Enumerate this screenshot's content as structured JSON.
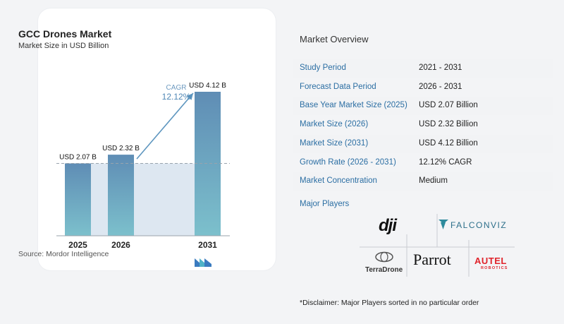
{
  "chart_data": {
    "type": "bar",
    "title": "GCC Drones Market",
    "subtitle": "Market Size in USD Billion",
    "categories": [
      "2025",
      "2026",
      "2031"
    ],
    "values": [
      2.07,
      2.32,
      4.12
    ],
    "data_labels": [
      "USD 2.07 B",
      "USD 2.32 B",
      "USD 4.12 B"
    ],
    "ylim": [
      0,
      4.12
    ],
    "annotation": {
      "label": "CAGR",
      "value": "12.12%"
    },
    "colors": {
      "bar_top": "#5f8db5",
      "bar_bottom": "#7cc0cc",
      "shade": "#dde7f1",
      "arrow": "#5e96bf",
      "dashed": "#98a3ad"
    }
  },
  "source": "Source:  Mordor Intelligence",
  "overview": {
    "title": "Market Overview",
    "rows": [
      {
        "label": "Study Period",
        "value": "2021 - 2031"
      },
      {
        "label": "Forecast Data Period",
        "value": "2026 - 2031"
      },
      {
        "label": "Base Year Market Size (2025)",
        "value": "USD 2.07 Billion"
      },
      {
        "label": "Market Size (2026)",
        "value": "USD 2.32 Billion"
      },
      {
        "label": "Market Size (2031)",
        "value": "USD 4.12 Billion"
      },
      {
        "label": "Growth Rate (2026 - 2031)",
        "value": "12.12% CAGR"
      },
      {
        "label": "Market Concentration",
        "value": "Medium"
      }
    ]
  },
  "major_players": {
    "title": "Major Players",
    "logos": [
      "dji",
      "FALCONVIZ",
      "TerraDrone",
      "Parrot",
      "AUTEL",
      "ROBOTICS"
    ]
  },
  "disclaimer": "*Disclaimer: Major Players sorted in no particular order"
}
